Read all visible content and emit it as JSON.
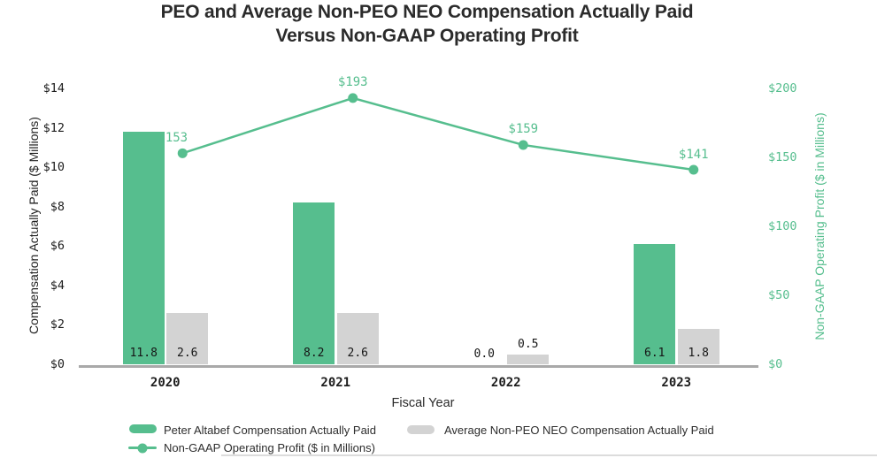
{
  "title": {
    "line1": "PEO and Average Non-PEO NEO Compensation Actually Paid",
    "line2": "Versus Non-GAAP Operating Profit"
  },
  "colors": {
    "green": "#56BE8E",
    "gray": "#D3D3D3",
    "axis_line": "#A9A9A9",
    "dark_text": "#1C1C1C",
    "divider": "#DCDCDC"
  },
  "chart_data": {
    "type": "bar+line",
    "categories": [
      "2020",
      "2021",
      "2022",
      "2023"
    ],
    "series": [
      {
        "name": "Peter Altabef Compensation Actually Paid",
        "type": "bar",
        "axis": "left",
        "color": "#56BE8E",
        "values": [
          11.8,
          8.2,
          0.0,
          6.1
        ],
        "labels": [
          "11.8",
          "8.2",
          "0.0",
          "6.1"
        ]
      },
      {
        "name": "Average Non-PEO NEO Compensation Actually Paid",
        "type": "bar",
        "axis": "left",
        "color": "#D3D3D3",
        "values": [
          2.6,
          2.6,
          0.5,
          1.8
        ],
        "labels": [
          "2.6",
          "2.6",
          "0.5",
          "1.8"
        ]
      },
      {
        "name": "Non-GAAP Operating Profit ($ in Millions)",
        "type": "line",
        "axis": "right",
        "color": "#56BE8E",
        "values": [
          153,
          193,
          159,
          141
        ],
        "labels": [
          "$153",
          "$193",
          "$159",
          "$141"
        ],
        "label_offsets_x": [
          -11,
          0,
          0,
          0
        ]
      }
    ],
    "left_axis": {
      "title": "Compensation Actually Paid ($ Millions)",
      "range": [
        0,
        14
      ],
      "ticks": [
        {
          "value": 0,
          "label": "$0"
        },
        {
          "value": 2,
          "label": "$2"
        },
        {
          "value": 4,
          "label": "$4"
        },
        {
          "value": 6,
          "label": "$6"
        },
        {
          "value": 8,
          "label": "$8"
        },
        {
          "value": 10,
          "label": "$10"
        },
        {
          "value": 12,
          "label": "$12"
        },
        {
          "value": 14,
          "label": "$14"
        }
      ]
    },
    "right_axis": {
      "title": "Non-GAAP Operating Profit ($ in Millions)",
      "range": [
        0,
        200
      ],
      "ticks": [
        {
          "value": 0,
          "label": "$0"
        },
        {
          "value": 50,
          "label": "$50"
        },
        {
          "value": 100,
          "label": "$100"
        },
        {
          "value": 150,
          "label": "$150"
        },
        {
          "value": 200,
          "label": "$200"
        }
      ]
    },
    "xlabel": "Fiscal Year",
    "grid": false,
    "legend_position": "bottom-left"
  }
}
